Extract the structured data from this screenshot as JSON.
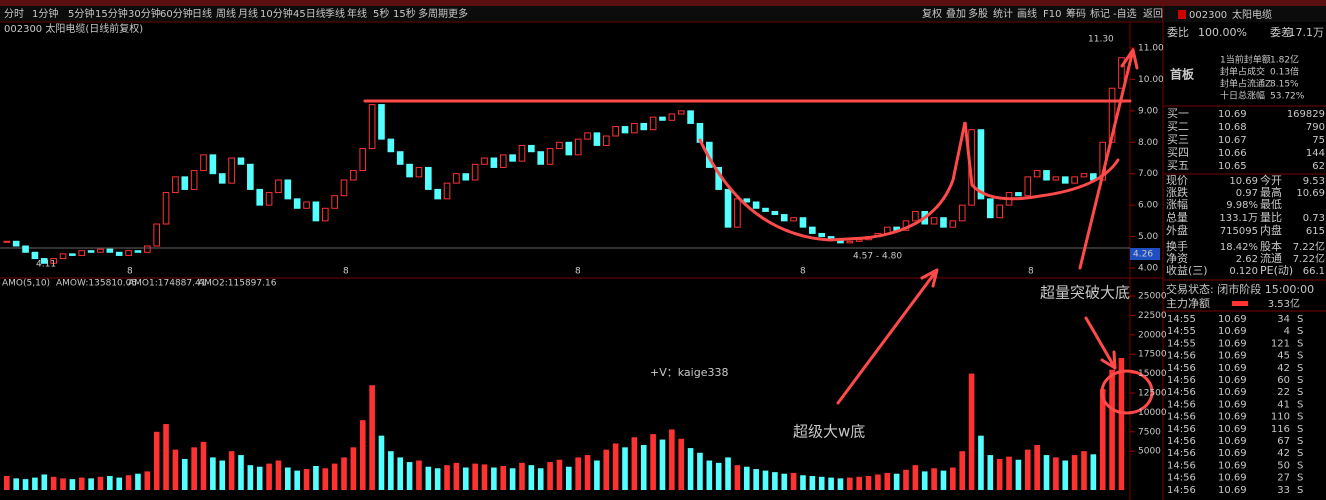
{
  "toolbar": [
    "分时",
    "1分钟",
    "5分钟",
    "15分钟",
    "30分钟",
    "60分钟",
    "日线",
    "周线",
    "月线",
    "10分钟",
    "45日线",
    "季线",
    "年线",
    "5秒",
    "15秒",
    "多周期",
    "更多"
  ],
  "tools": [
    "复权",
    "叠加",
    "多股",
    "统计",
    "画线",
    "F10",
    "筹码",
    "标记",
    "-自选",
    "返回"
  ],
  "chart_header": "002300 太阳电缆(日线前复权)",
  "price_chart": {
    "ylim": [
      4,
      11
    ],
    "yticks": [
      {
        "value": 4,
        "label": "4.00"
      },
      {
        "value": 5,
        "label": "5.00"
      },
      {
        "value": 6,
        "label": "6.00"
      },
      {
        "value": 7,
        "label": "7.00"
      },
      {
        "value": 8,
        "label": "8.00"
      },
      {
        "value": 9,
        "label": "9.00"
      },
      {
        "value": 10,
        "label": "10.00"
      },
      {
        "value": 11,
        "label": "11.00"
      }
    ],
    "closes": [
      4.85,
      4.7,
      4.5,
      4.3,
      4.15,
      4.3,
      4.45,
      4.4,
      4.55,
      4.5,
      4.6,
      4.5,
      4.4,
      4.55,
      4.5,
      4.7,
      5.4,
      6.4,
      6.9,
      6.5,
      7.1,
      7.6,
      7.0,
      6.7,
      7.5,
      7.3,
      6.5,
      6.0,
      6.4,
      6.8,
      6.2,
      5.9,
      6.1,
      5.5,
      5.9,
      6.3,
      6.8,
      7.1,
      7.8,
      9.2,
      8.1,
      7.7,
      7.3,
      6.9,
      7.2,
      6.5,
      6.2,
      6.7,
      7.0,
      6.8,
      7.3,
      7.5,
      7.2,
      7.6,
      7.4,
      7.9,
      7.7,
      7.3,
      7.8,
      8.0,
      7.6,
      8.1,
      8.3,
      7.9,
      8.2,
      8.5,
      8.3,
      8.6,
      8.4,
      8.8,
      8.7,
      8.9,
      9.0,
      8.6,
      8.0,
      7.2,
      6.5,
      5.3,
      6.2,
      6.1,
      5.9,
      5.8,
      5.7,
      5.5,
      5.6,
      5.3,
      5.1,
      5.0,
      4.9,
      4.8,
      4.85,
      4.9,
      5.0,
      5.1,
      5.3,
      5.2,
      5.5,
      5.8,
      5.4,
      5.6,
      5.3,
      5.5,
      6.0,
      8.4,
      6.2,
      5.6,
      6.0,
      6.4,
      6.3,
      6.9,
      7.1,
      6.8,
      6.9,
      6.7,
      6.9,
      7.0,
      6.8,
      8.0,
      9.72,
      10.69
    ],
    "low_label": "4.11",
    "high_label": "11.30",
    "range_label": "4.57 - 4.80",
    "price_tag": "4.26",
    "period_markers": [
      "8",
      "8",
      "8",
      "8",
      "8"
    ]
  },
  "volume_chart": {
    "indicator": "AMO(5,10)",
    "amow": "AMOW:135810.05",
    "amo1": "AMO1:174887.41",
    "amo2": "AMO2:115897.16",
    "ylim": [
      0,
      25000
    ],
    "yticks": [
      5000,
      7500,
      10000,
      12500,
      15000,
      17500,
      20000,
      22500,
      25000
    ],
    "values": [
      1800,
      1500,
      1400,
      1600,
      2000,
      1700,
      1500,
      1400,
      1600,
      1500,
      1700,
      1800,
      1600,
      1900,
      2100,
      2400,
      7500,
      8500,
      5200,
      4000,
      5500,
      6200,
      4200,
      3800,
      5000,
      4500,
      3200,
      3000,
      3400,
      3800,
      2900,
      2500,
      2700,
      3100,
      2800,
      3400,
      4200,
      5500,
      9000,
      13500,
      7000,
      5000,
      4200,
      3600,
      3800,
      3000,
      2800,
      3200,
      3500,
      2900,
      3400,
      3300,
      2900,
      3100,
      2800,
      3500,
      3200,
      2800,
      3600,
      3900,
      3000,
      4200,
      4500,
      3800,
      5200,
      6000,
      5500,
      6800,
      5800,
      7200,
      6500,
      7800,
      6600,
      5400,
      4800,
      3800,
      3500,
      4200,
      3200,
      3000,
      2700,
      2500,
      2300,
      2100,
      2200,
      1900,
      1800,
      1700,
      1600,
      1500,
      1600,
      1700,
      1800,
      2000,
      2200,
      2100,
      2600,
      3200,
      2400,
      2800,
      2500,
      2900,
      5000,
      15000,
      7000,
      4500,
      4000,
      4300,
      3900,
      5200,
      5800,
      4500,
      4200,
      3800,
      4500,
      5000,
      4600,
      13000,
      15500,
      17000
    ]
  },
  "annotations": {
    "breakout": "超量突破大底",
    "w_bottom": "超级大w底",
    "contact": "+V：kaige338"
  },
  "quote_panel": {
    "code": "002300",
    "name": "太阳电缆",
    "ratio_label": "委比",
    "ratio": "100.00%",
    "diff_label": "委差",
    "diff": "17.1万",
    "board": "首板",
    "info": [
      [
        "1当前封单额",
        "1.82亿"
      ],
      [
        "封单占成交",
        "0.13倍"
      ],
      [
        "封单占流通Z",
        "8.15%"
      ],
      [
        "十日总涨幅",
        "53.72%"
      ]
    ],
    "bids": [
      [
        "买一",
        "10.69",
        "169829"
      ],
      [
        "买二",
        "10.68",
        "790"
      ],
      [
        "买三",
        "10.67",
        "75"
      ],
      [
        "买四",
        "10.66",
        "144"
      ],
      [
        "买五",
        "10.65",
        "62"
      ]
    ],
    "stats": [
      [
        "现价",
        "10.69",
        "今开",
        "9.53"
      ],
      [
        "涨跌",
        "0.97",
        "最高",
        "10.69"
      ],
      [
        "涨幅",
        "9.98%",
        "最低",
        ""
      ],
      [
        "总量",
        "133.1万",
        "量比",
        "0.73"
      ],
      [
        "外盘",
        "715095",
        "内盘",
        "615"
      ],
      [
        "换手",
        "18.42%",
        "股本",
        "7.22亿"
      ],
      [
        "净资",
        "2.62",
        "流通",
        "7.22亿"
      ],
      [
        "收益(三)",
        "0.120",
        "PE(动)",
        "66.1"
      ]
    ],
    "status": "交易状态: 闭市阶段 15:00:00",
    "net_label": "主力净额",
    "net": "3.53亿",
    "trades": [
      [
        "14:55",
        "10.69",
        "34",
        "S"
      ],
      [
        "14:55",
        "10.69",
        "4",
        "S"
      ],
      [
        "14:55",
        "10.69",
        "121",
        "S"
      ],
      [
        "14:56",
        "10.69",
        "45",
        "S"
      ],
      [
        "14:56",
        "10.69",
        "42",
        "S"
      ],
      [
        "14:56",
        "10.69",
        "60",
        "S"
      ],
      [
        "14:56",
        "10.69",
        "22",
        "S"
      ],
      [
        "14:56",
        "10.69",
        "41",
        "S"
      ],
      [
        "14:56",
        "10.69",
        "110",
        "S"
      ],
      [
        "14:56",
        "10.69",
        "116",
        "S"
      ],
      [
        "14:56",
        "10.69",
        "67",
        "S"
      ],
      [
        "14:56",
        "10.69",
        "42",
        "S"
      ],
      [
        "14:56",
        "10.69",
        "50",
        "S"
      ],
      [
        "14:56",
        "10.69",
        "27",
        "S"
      ],
      [
        "14:56",
        "10.69",
        "33",
        "S"
      ]
    ]
  }
}
